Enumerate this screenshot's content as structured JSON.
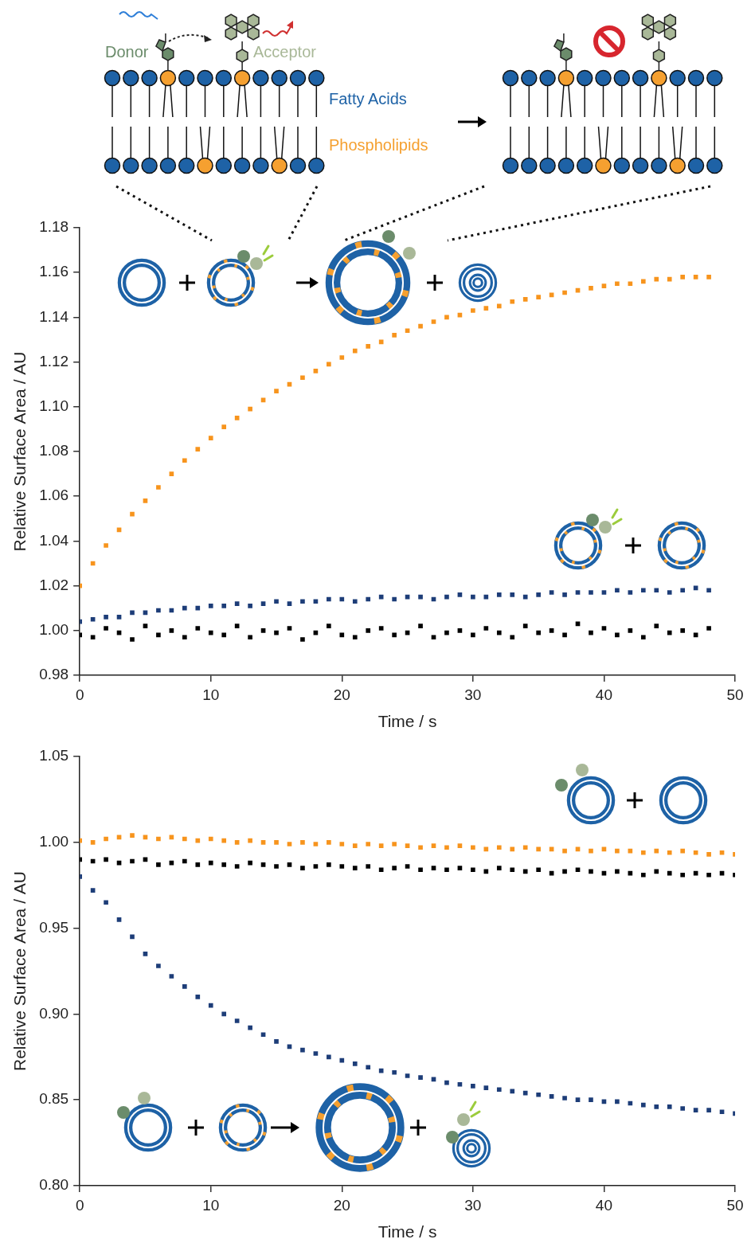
{
  "diagram": {
    "donor_label": "Donor",
    "acceptor_label": "Acceptor",
    "fatty_acids_label": "Fatty Acids",
    "phospholipids_label": "Phospholipids"
  },
  "chart_data": [
    {
      "type": "scatter",
      "x_label": "Time / s",
      "y_label": "Relative Surface Area / AU",
      "xlim": [
        0,
        50
      ],
      "xticks": [
        0,
        10,
        20,
        30,
        40,
        50
      ],
      "ylim": [
        0.98,
        1.18
      ],
      "yticks": [
        0.98,
        {
          "value": 1,
          "label": "1.00"
        },
        1.02,
        1.04,
        1.06,
        1.08,
        {
          "value": 1.1,
          "label": "1.10"
        },
        1.12,
        1.14,
        1.16,
        1.18
      ],
      "grid": false,
      "marker": "square",
      "x": [
        0,
        1,
        2,
        3,
        4,
        5,
        6,
        7,
        8,
        9,
        10,
        11,
        12,
        13,
        14,
        15,
        16,
        17,
        18,
        19,
        20,
        21,
        22,
        23,
        24,
        25,
        26,
        27,
        28,
        29,
        30,
        31,
        32,
        33,
        34,
        35,
        36,
        37,
        38,
        39,
        40,
        41,
        42,
        43,
        44,
        45,
        46,
        47,
        48
      ],
      "series": [
        {
          "color": "#f7941d",
          "values": [
            1.02,
            1.03,
            1.038,
            1.045,
            1.052,
            1.058,
            1.064,
            1.07,
            1.076,
            1.081,
            1.086,
            1.091,
            1.095,
            1.099,
            1.103,
            1.107,
            1.11,
            1.113,
            1.116,
            1.119,
            1.122,
            1.125,
            1.127,
            1.129,
            1.132,
            1.134,
            1.136,
            1.138,
            1.14,
            1.141,
            1.143,
            1.144,
            1.145,
            1.147,
            1.148,
            1.149,
            1.15,
            1.151,
            1.152,
            1.153,
            1.154,
            1.155,
            1.155,
            1.156,
            1.157,
            1.157,
            1.158,
            1.158,
            1.158
          ]
        },
        {
          "color": "#1d3d78",
          "values": [
            1.004,
            1.005,
            1.006,
            1.006,
            1.008,
            1.008,
            1.009,
            1.009,
            1.01,
            1.01,
            1.011,
            1.011,
            1.012,
            1.011,
            1.012,
            1.013,
            1.012,
            1.013,
            1.013,
            1.014,
            1.014,
            1.013,
            1.014,
            1.015,
            1.014,
            1.015,
            1.015,
            1.014,
            1.015,
            1.016,
            1.015,
            1.015,
            1.016,
            1.016,
            1.015,
            1.016,
            1.017,
            1.016,
            1.017,
            1.017,
            1.017,
            1.018,
            1.017,
            1.018,
            1.018,
            1.017,
            1.018,
            1.019,
            1.018
          ]
        },
        {
          "color": "#000000",
          "values": [
            0.998,
            0.997,
            1.001,
            0.999,
            0.996,
            1.002,
            0.998,
            1.0,
            0.997,
            1.001,
            0.999,
            0.998,
            1.002,
            0.997,
            1.0,
            0.999,
            1.001,
            0.996,
            0.999,
            1.002,
            0.998,
            0.997,
            1.0,
            1.001,
            0.998,
            0.999,
            1.002,
            0.997,
            0.999,
            1.0,
            0.998,
            1.001,
            0.999,
            0.997,
            1.002,
            0.999,
            1.0,
            0.998,
            1.003,
            0.999,
            1.001,
            0.998,
            1.0,
            0.997,
            1.002,
            0.999,
            1.0,
            0.998,
            1.001
          ]
        }
      ]
    },
    {
      "type": "scatter",
      "x_label": "Time / s",
      "y_label": "Relative Surface Area / AU",
      "xlim": [
        0,
        50
      ],
      "xticks": [
        0,
        10,
        20,
        30,
        40,
        50
      ],
      "ylim": [
        0.8,
        1.05
      ],
      "yticks": [
        {
          "value": 0.8,
          "label": "0.80"
        },
        0.85,
        {
          "value": 0.9,
          "label": "0.90"
        },
        0.95,
        {
          "value": 1,
          "label": "1.00"
        },
        1.05
      ],
      "grid": false,
      "marker": "square",
      "x": [
        0,
        1,
        2,
        3,
        4,
        5,
        6,
        7,
        8,
        9,
        10,
        11,
        12,
        13,
        14,
        15,
        16,
        17,
        18,
        19,
        20,
        21,
        22,
        23,
        24,
        25,
        26,
        27,
        28,
        29,
        30,
        31,
        32,
        33,
        34,
        35,
        36,
        37,
        38,
        39,
        40,
        41,
        42,
        43,
        44,
        45,
        46,
        47,
        48,
        49,
        50
      ],
      "series": [
        {
          "color": "#f7941d",
          "values": [
            1.001,
            1.0,
            1.002,
            1.003,
            1.004,
            1.003,
            1.002,
            1.003,
            1.002,
            1.001,
            1.002,
            1.001,
            1.0,
            1.001,
            1.0,
            1.0,
            0.999,
            1.0,
            0.999,
            1.0,
            0.999,
            0.998,
            0.999,
            0.998,
            0.999,
            0.998,
            0.997,
            0.998,
            0.997,
            0.998,
            0.997,
            0.996,
            0.997,
            0.996,
            0.997,
            0.996,
            0.996,
            0.995,
            0.996,
            0.995,
            0.996,
            0.995,
            0.995,
            0.994,
            0.995,
            0.994,
            0.995,
            0.994,
            0.993,
            0.994,
            0.993
          ]
        },
        {
          "color": "#000000",
          "values": [
            0.99,
            0.989,
            0.99,
            0.988,
            0.989,
            0.99,
            0.987,
            0.988,
            0.989,
            0.987,
            0.988,
            0.987,
            0.986,
            0.988,
            0.987,
            0.986,
            0.987,
            0.985,
            0.986,
            0.987,
            0.986,
            0.985,
            0.986,
            0.984,
            0.985,
            0.986,
            0.984,
            0.985,
            0.984,
            0.985,
            0.984,
            0.983,
            0.985,
            0.984,
            0.983,
            0.984,
            0.982,
            0.983,
            0.984,
            0.983,
            0.982,
            0.983,
            0.982,
            0.981,
            0.983,
            0.982,
            0.981,
            0.982,
            0.981,
            0.982,
            0.981
          ]
        },
        {
          "color": "#1d3d78",
          "values": [
            0.98,
            0.972,
            0.965,
            0.955,
            0.945,
            0.935,
            0.928,
            0.922,
            0.916,
            0.91,
            0.905,
            0.9,
            0.896,
            0.892,
            0.888,
            0.884,
            0.881,
            0.879,
            0.877,
            0.875,
            0.873,
            0.871,
            0.869,
            0.867,
            0.866,
            0.864,
            0.863,
            0.862,
            0.86,
            0.859,
            0.858,
            0.857,
            0.856,
            0.855,
            0.854,
            0.853,
            0.852,
            0.851,
            0.85,
            0.85,
            0.849,
            0.849,
            0.848,
            0.847,
            0.846,
            0.846,
            0.845,
            0.844,
            0.844,
            0.843,
            0.842
          ]
        }
      ]
    }
  ]
}
